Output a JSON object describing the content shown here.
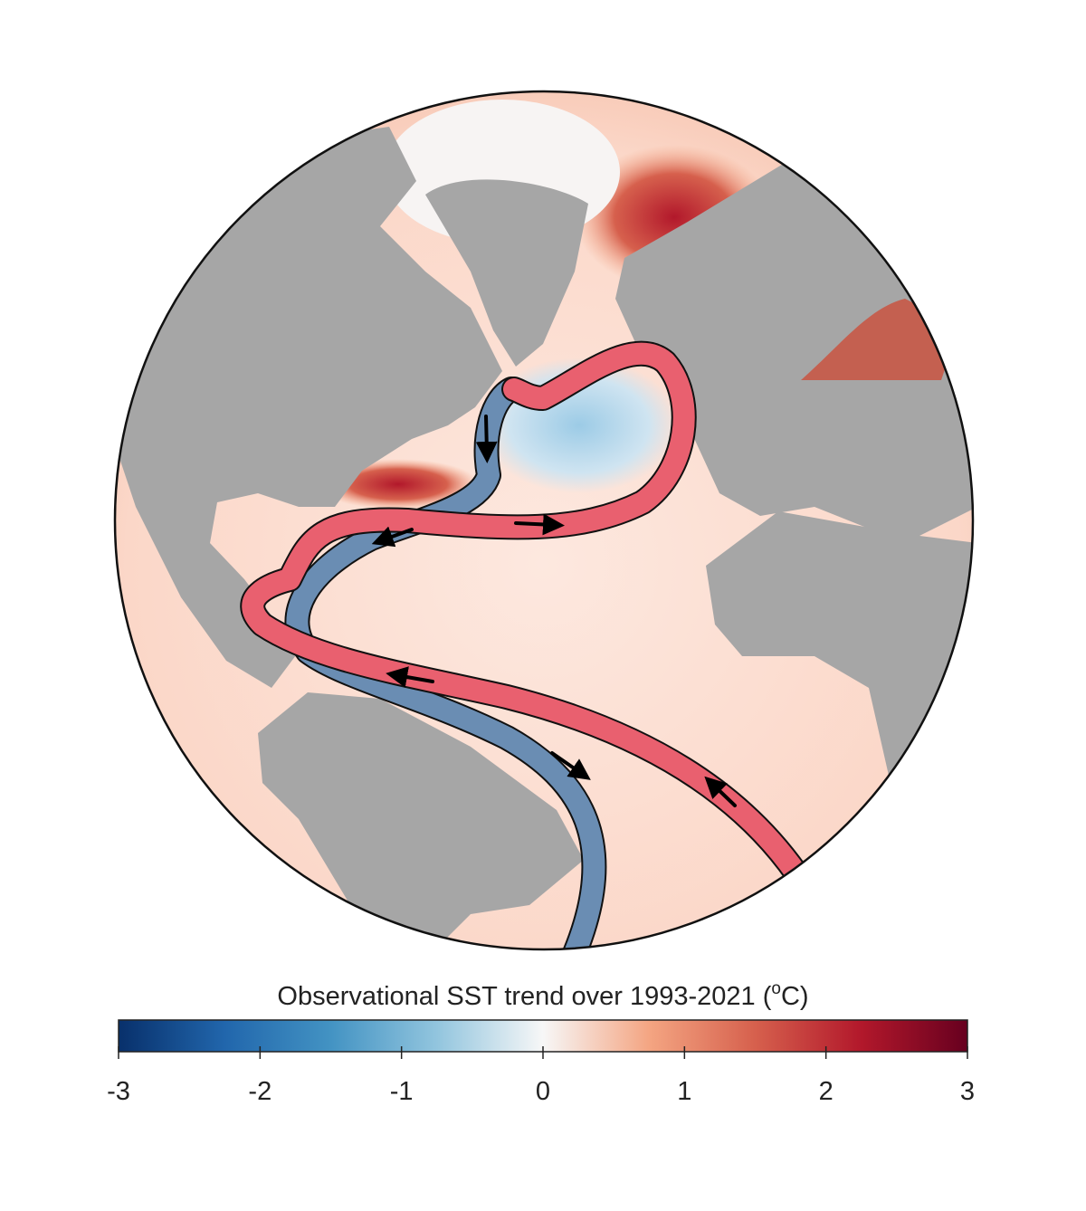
{
  "colorbar": {
    "title": {
      "before": "Observational SST trend over 1993-2021 (",
      "sup": "o",
      "after": "C)"
    },
    "lim": [
      -3,
      3
    ],
    "ticks": [
      -3,
      -2,
      -1,
      0,
      1,
      2,
      3
    ],
    "colors": [
      "#08306b",
      "#2166ac",
      "#4393c3",
      "#92c5de",
      "#f7f7f7",
      "#f4a582",
      "#d6604d",
      "#b2182b",
      "#67001f"
    ]
  }
}
